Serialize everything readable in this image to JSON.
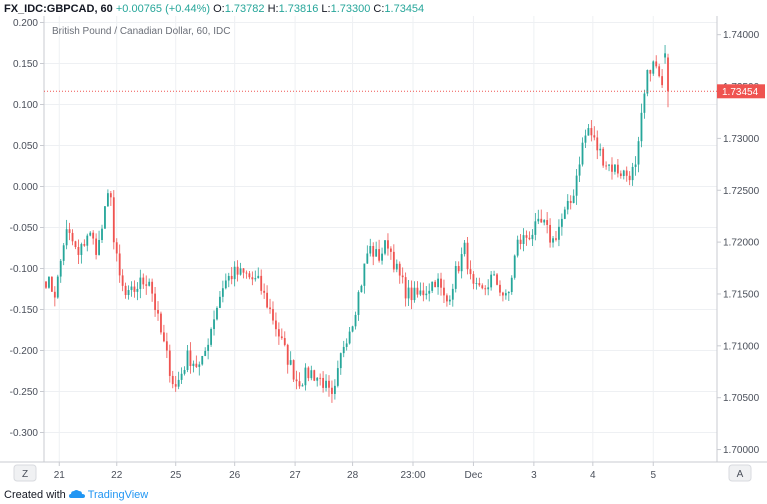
{
  "header": {
    "symbol": "FX_IDC:GBPCAD, 60",
    "change": "+0.00765 (+0.44%)",
    "open_label": "O:",
    "open": "1.73782",
    "high_label": "H:",
    "high": "1.73816",
    "low_label": "L:",
    "low": "1.73300",
    "close_label": "C:",
    "close": "1.73454"
  },
  "footer": {
    "created_with": "Created with",
    "brand": "TradingView"
  },
  "corner_left": "Z",
  "corner_right": "A",
  "colors": {
    "up": "#26a69a",
    "down": "#ef5350",
    "grid": "#eef0f3",
    "axis": "#c9cbd1",
    "price_line": "#ef5350"
  },
  "chart_data": {
    "type": "candlestick",
    "title": "British Pound / Canadian Dollar, 60, IDC",
    "left_axis": {
      "ticks": [
        0.2,
        0.15,
        0.1,
        0.05,
        0.0,
        -0.05,
        -0.1,
        -0.15,
        -0.2,
        -0.25,
        -0.3
      ],
      "labels": [
        "0.200",
        "0.150",
        "0.100",
        "0.050",
        "0.000",
        "-0.050",
        "-0.100",
        "-0.150",
        "-0.200",
        "-0.250",
        "-0.300"
      ]
    },
    "right_axis": {
      "ticks": [
        1.74,
        1.735,
        1.73,
        1.725,
        1.72,
        1.715,
        1.71,
        1.705,
        1.7
      ],
      "labels": [
        "1.74000",
        "1.73500",
        "1.73000",
        "1.72500",
        "1.72000",
        "1.71500",
        "1.71000",
        "1.70500",
        "1.70000"
      ],
      "range": [
        1.6988,
        1.7418
      ]
    },
    "x_axis": {
      "labels": [
        "21",
        "22",
        "25",
        "26",
        "27",
        "28",
        "23:00",
        "Dec",
        "3",
        "4",
        "5"
      ],
      "positions": [
        4.5,
        24,
        44,
        64,
        84.5,
        104,
        124.5,
        145,
        165.5,
        185.5,
        206
      ]
    },
    "last_price": {
      "value": 1.73454,
      "label": "1.73454"
    },
    "bars_count": 212,
    "path_points": [
      [
        0,
        1.7164
      ],
      [
        3,
        1.715
      ],
      [
        6,
        1.721
      ],
      [
        8,
        1.7202
      ],
      [
        10,
        1.7185
      ],
      [
        13,
        1.721
      ],
      [
        16,
        1.7192
      ],
      [
        20,
        1.7255
      ],
      [
        21,
        1.72
      ],
      [
        23,
        1.7162
      ],
      [
        25,
        1.7145
      ],
      [
        29,
        1.716
      ],
      [
        32,
        1.7165
      ],
      [
        35,
        1.712
      ],
      [
        40,
        1.7058
      ],
      [
        44,
        1.709
      ],
      [
        48,
        1.7078
      ],
      [
        52,
        1.7128
      ],
      [
        55,
        1.716
      ],
      [
        58,
        1.717
      ],
      [
        62,
        1.7168
      ],
      [
        66,
        1.716
      ],
      [
        70,
        1.713
      ],
      [
        74,
        1.7095
      ],
      [
        78,
        1.7065
      ],
      [
        82,
        1.7075
      ],
      [
        86,
        1.7065
      ],
      [
        89,
        1.7045
      ],
      [
        92,
        1.71
      ],
      [
        95,
        1.7125
      ],
      [
        98,
        1.7165
      ],
      [
        100,
        1.7195
      ],
      [
        103,
        1.7185
      ],
      [
        106,
        1.72
      ],
      [
        109,
        1.717
      ],
      [
        112,
        1.715
      ],
      [
        115,
        1.7148
      ],
      [
        118,
        1.7155
      ],
      [
        121,
        1.7165
      ],
      [
        124,
        1.714
      ],
      [
        127,
        1.717
      ],
      [
        130,
        1.7195
      ],
      [
        132,
        1.7155
      ],
      [
        135,
        1.715
      ],
      [
        138,
        1.7165
      ],
      [
        140,
        1.716
      ],
      [
        143,
        1.7142
      ],
      [
        146,
        1.7198
      ],
      [
        150,
        1.7208
      ],
      [
        154,
        1.7218
      ],
      [
        157,
        1.72
      ],
      [
        160,
        1.7222
      ],
      [
        163,
        1.724
      ],
      [
        166,
        1.729
      ],
      [
        168,
        1.731
      ],
      [
        171,
        1.729
      ],
      [
        174,
        1.7275
      ],
      [
        177,
        1.727
      ],
      [
        180,
        1.7265
      ],
      [
        183,
        1.727
      ],
      [
        185,
        1.733
      ],
      [
        187,
        1.737
      ],
      [
        189,
        1.737
      ],
      [
        191,
        1.7345
      ]
    ],
    "last_bars": [
      {
        "o": 1.7378,
        "h": 1.739,
        "l": 1.7372,
        "c": 1.7382
      },
      {
        "o": 1.7378,
        "h": 1.73816,
        "l": 1.733,
        "c": 1.73454
      }
    ]
  }
}
